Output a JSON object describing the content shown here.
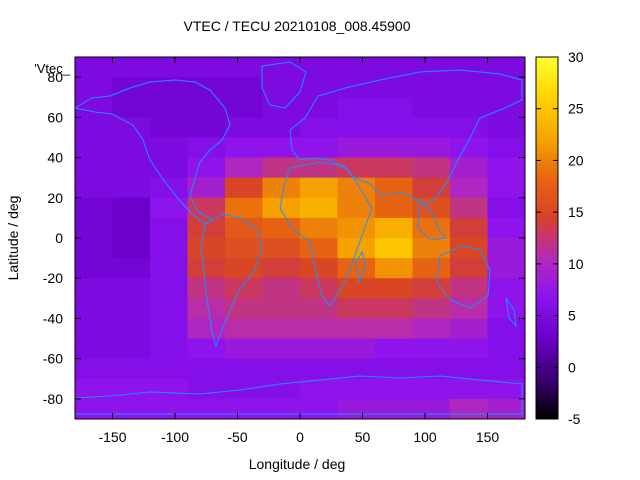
{
  "chart_data": {
    "type": "heatmap",
    "title": "VTEC / TECU 20210108_008.45900",
    "xlabel": "Longitude / deg",
    "ylabel": "Latitude / deg",
    "legend_key": "'Vtec_",
    "xlim": [
      -180,
      180
    ],
    "ylim": [
      -90,
      90
    ],
    "xticks": [
      -150,
      -100,
      -50,
      0,
      50,
      100,
      150
    ],
    "yticks": [
      -80,
      -60,
      -40,
      -20,
      0,
      20,
      40,
      60,
      80
    ],
    "colorbar": {
      "range": [
        -5,
        30
      ],
      "ticks": [
        -5,
        0,
        5,
        10,
        15,
        20,
        25,
        30
      ],
      "palette": [
        "#000000",
        "#3a0072",
        "#6a00c8",
        "#8b12f0",
        "#b52ab8",
        "#d6412a",
        "#e86610",
        "#f6a600",
        "#ffd300",
        "#ffff30"
      ]
    },
    "grid": false,
    "lon_step": 30,
    "lat_step": 10,
    "lons": [
      -165,
      -135,
      -105,
      -75,
      -45,
      -15,
      15,
      45,
      75,
      105,
      135,
      165
    ],
    "lats": [
      85,
      75,
      65,
      55,
      45,
      35,
      25,
      15,
      5,
      -5,
      -15,
      -25,
      -35,
      -45,
      -55,
      -65,
      -75,
      -85
    ],
    "values": [
      [
        5,
        5,
        5,
        5,
        5,
        5,
        5,
        5,
        5,
        5,
        5,
        5
      ],
      [
        5,
        4,
        4,
        4,
        4,
        5,
        5,
        5,
        5,
        5,
        5,
        5
      ],
      [
        5,
        4,
        4,
        4,
        4,
        5,
        5,
        6,
        6,
        5,
        5,
        5
      ],
      [
        5,
        5,
        4,
        4,
        5,
        5,
        6,
        6,
        6,
        6,
        6,
        5
      ],
      [
        5,
        5,
        5,
        6,
        7,
        7,
        7,
        8,
        8,
        8,
        7,
        6
      ],
      [
        5,
        5,
        5,
        7,
        10,
        12,
        12,
        13,
        13,
        12,
        9,
        7
      ],
      [
        5,
        5,
        6,
        9,
        15,
        20,
        22,
        20,
        18,
        14,
        10,
        7
      ],
      [
        4,
        3,
        7,
        13,
        19,
        22,
        23,
        20,
        18,
        16,
        12,
        6
      ],
      [
        4,
        3,
        6,
        14,
        17,
        18,
        20,
        21,
        23,
        19,
        14,
        7
      ],
      [
        4,
        3,
        6,
        15,
        16,
        16,
        18,
        22,
        25,
        20,
        15,
        8
      ],
      [
        4,
        4,
        6,
        14,
        15,
        14,
        15,
        18,
        21,
        18,
        14,
        8
      ],
      [
        5,
        5,
        6,
        12,
        13,
        12,
        13,
        15,
        15,
        14,
        12,
        7
      ],
      [
        5,
        5,
        6,
        11,
        12,
        12,
        12,
        13,
        13,
        12,
        11,
        7
      ],
      [
        5,
        5,
        6,
        10,
        11,
        11,
        11,
        11,
        11,
        10,
        9,
        6
      ],
      [
        5,
        5,
        6,
        7,
        8,
        8,
        8,
        8,
        7,
        7,
        7,
        6
      ],
      [
        6,
        6,
        6,
        6,
        6,
        6,
        6,
        6,
        6,
        6,
        6,
        6
      ],
      [
        7,
        7,
        7,
        6,
        6,
        6,
        7,
        7,
        7,
        7,
        7,
        7
      ],
      [
        7,
        7,
        7,
        7,
        7,
        7,
        7,
        8,
        8,
        8,
        10,
        9
      ]
    ]
  }
}
